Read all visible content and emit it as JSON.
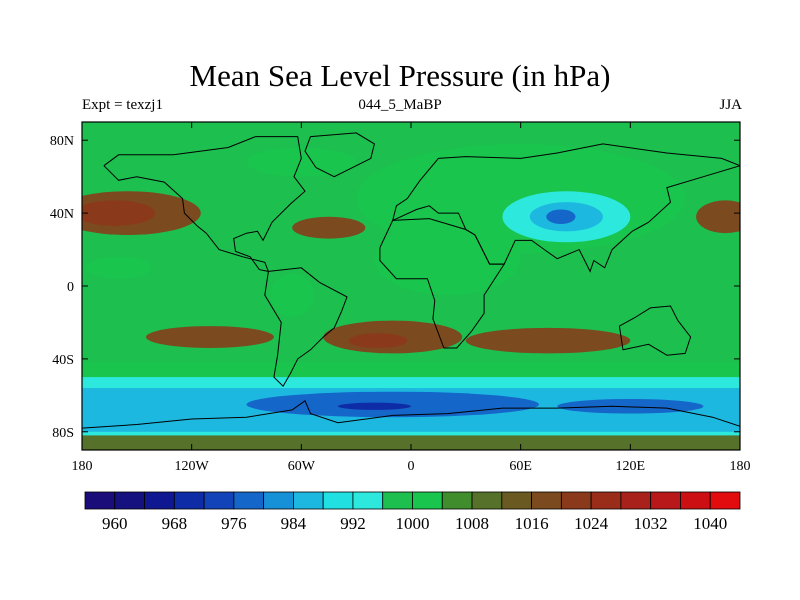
{
  "title": "Mean Sea Level Pressure (in hPa)",
  "subtitle_left": "Expt = texzj1",
  "subtitle_center": "044_5_MaBP",
  "subtitle_right": "JJA",
  "map": {
    "projection": "cylindrical equidistant",
    "lon_range": [
      -180,
      180
    ],
    "lat_range": [
      -90,
      90
    ],
    "x_ticks": [
      {
        "value": -180,
        "label": "180"
      },
      {
        "value": -120,
        "label": "120W"
      },
      {
        "value": -60,
        "label": "60W"
      },
      {
        "value": 0,
        "label": "0"
      },
      {
        "value": 60,
        "label": "60E"
      },
      {
        "value": 120,
        "label": "120E"
      },
      {
        "value": 180,
        "label": "180"
      }
    ],
    "y_ticks": [
      {
        "value": 80,
        "label": "80N"
      },
      {
        "value": 40,
        "label": "40N"
      },
      {
        "value": 0,
        "label": "0"
      },
      {
        "value": -40,
        "label": "40S"
      },
      {
        "value": -80,
        "label": "80S"
      }
    ],
    "background_color": "#1dbf4f",
    "pressure_regions": [
      {
        "name": "north-pacific-high",
        "hpa": 1016,
        "lon": -155,
        "lat": 40,
        "rlon": 40,
        "rlat": 12
      },
      {
        "name": "north-pacific-high-core",
        "hpa": 1020,
        "lon": -162,
        "lat": 40,
        "rlon": 22,
        "rlat": 7
      },
      {
        "name": "north-atlantic-high",
        "hpa": 1016,
        "lon": -45,
        "lat": 32,
        "rlon": 20,
        "rlat": 6
      },
      {
        "name": "east-pacific-high-edge",
        "hpa": 1016,
        "lon": 172,
        "lat": 38,
        "rlon": 16,
        "rlat": 9
      },
      {
        "name": "south-pacific-high",
        "hpa": 1016,
        "lon": -110,
        "lat": -28,
        "rlon": 35,
        "rlat": 6
      },
      {
        "name": "south-atlantic-high",
        "hpa": 1016,
        "lon": -10,
        "lat": -28,
        "rlon": 38,
        "rlat": 9
      },
      {
        "name": "south-atlantic-high-core",
        "hpa": 1020,
        "lon": -18,
        "lat": -30,
        "rlon": 16,
        "rlat": 4
      },
      {
        "name": "indian-ocean-high",
        "hpa": 1016,
        "lon": 75,
        "lat": -30,
        "rlon": 45,
        "rlat": 7
      },
      {
        "name": "arctic-low",
        "hpa": 1000,
        "lon": -60,
        "lat": 68,
        "rlon": 30,
        "rlat": 8
      },
      {
        "name": "pacific-subtropical-trough",
        "hpa": 1000,
        "lon": -160,
        "lat": 10,
        "rlon": 18,
        "rlat": 6
      },
      {
        "name": "eurasian-low",
        "hpa": 1000,
        "lon": 60,
        "lat": 48,
        "rlon": 90,
        "rlat": 30
      },
      {
        "name": "asian-monsoon-low",
        "hpa": 992,
        "lon": 85,
        "lat": 38,
        "rlon": 35,
        "rlat": 14
      },
      {
        "name": "asian-monsoon-low-core",
        "hpa": 984,
        "lon": 85,
        "lat": 38,
        "rlon": 20,
        "rlat": 8
      },
      {
        "name": "asian-monsoon-low-center",
        "hpa": 976,
        "lon": 82,
        "lat": 38,
        "rlon": 8,
        "rlat": 4
      },
      {
        "name": "african-low",
        "hpa": 1000,
        "lon": 20,
        "lat": 15,
        "rlon": 40,
        "rlat": 20
      },
      {
        "name": "south-american-low",
        "hpa": 1000,
        "lon": -65,
        "lat": -5,
        "rlon": 12,
        "rlat": 12
      }
    ],
    "southern_bands": [
      {
        "hpa": 1000,
        "lat_top": -42,
        "lat_bottom": -50
      },
      {
        "hpa": 992,
        "lat_top": -50,
        "lat_bottom": -85
      },
      {
        "hpa": 984,
        "lat_top": -56,
        "lat_bottom": -80
      },
      {
        "hpa": 1008,
        "lat_top": -82,
        "lat_bottom": -90
      }
    ],
    "southern_lows": [
      {
        "hpa": 976,
        "lon": -10,
        "lat": -65,
        "rlon": 80,
        "rlat": 7
      },
      {
        "hpa": 968,
        "lon": -20,
        "lat": -66,
        "rlon": 20,
        "rlat": 2
      },
      {
        "hpa": 976,
        "lon": 120,
        "lat": -66,
        "rlon": 40,
        "rlat": 4
      }
    ],
    "coastlines": [
      {
        "name": "north-america",
        "lonlat": [
          [
            -168,
            66
          ],
          [
            -160,
            72
          ],
          [
            -130,
            72
          ],
          [
            -100,
            76
          ],
          [
            -85,
            82
          ],
          [
            -62,
            82
          ],
          [
            -60,
            70
          ],
          [
            -64,
            60
          ],
          [
            -58,
            52
          ],
          [
            -66,
            45
          ],
          [
            -76,
            35
          ],
          [
            -81,
            25
          ],
          [
            -84,
            30
          ],
          [
            -90,
            29
          ],
          [
            -97,
            26
          ],
          [
            -96,
            19
          ],
          [
            -88,
            16
          ],
          [
            -83,
            9
          ],
          [
            -78,
            8
          ],
          [
            -80,
            13
          ],
          [
            -92,
            16
          ],
          [
            -105,
            20
          ],
          [
            -112,
            29
          ],
          [
            -117,
            33
          ],
          [
            -124,
            40
          ],
          [
            -125,
            48
          ],
          [
            -135,
            57
          ],
          [
            -150,
            60
          ],
          [
            -160,
            58
          ],
          [
            -168,
            66
          ]
        ]
      },
      {
        "name": "greenland",
        "lonlat": [
          [
            -55,
            82
          ],
          [
            -30,
            84
          ],
          [
            -20,
            78
          ],
          [
            -22,
            70
          ],
          [
            -42,
            60
          ],
          [
            -52,
            65
          ],
          [
            -58,
            74
          ],
          [
            -55,
            82
          ]
        ]
      },
      {
        "name": "south-america",
        "lonlat": [
          [
            -78,
            8
          ],
          [
            -60,
            10
          ],
          [
            -50,
            2
          ],
          [
            -35,
            -6
          ],
          [
            -38,
            -14
          ],
          [
            -42,
            -23
          ],
          [
            -48,
            -28
          ],
          [
            -55,
            -35
          ],
          [
            -62,
            -40
          ],
          [
            -66,
            -48
          ],
          [
            -70,
            -55
          ],
          [
            -75,
            -50
          ],
          [
            -73,
            -38
          ],
          [
            -71,
            -20
          ],
          [
            -80,
            -5
          ],
          [
            -78,
            8
          ]
        ]
      },
      {
        "name": "africa",
        "lonlat": [
          [
            -17,
            21
          ],
          [
            -10,
            36
          ],
          [
            10,
            37
          ],
          [
            30,
            31
          ],
          [
            35,
            28
          ],
          [
            43,
            12
          ],
          [
            51,
            12
          ],
          [
            40,
            -5
          ],
          [
            40,
            -15
          ],
          [
            33,
            -25
          ],
          [
            25,
            -34
          ],
          [
            18,
            -34
          ],
          [
            12,
            -18
          ],
          [
            13,
            -8
          ],
          [
            9,
            4
          ],
          [
            -8,
            4
          ],
          [
            -17,
            14
          ],
          [
            -17,
            21
          ]
        ]
      },
      {
        "name": "eurasia",
        "lonlat": [
          [
            -10,
            36
          ],
          [
            -8,
            44
          ],
          [
            -2,
            48
          ],
          [
            5,
            58
          ],
          [
            15,
            70
          ],
          [
            30,
            71
          ],
          [
            60,
            70
          ],
          [
            80,
            73
          ],
          [
            105,
            78
          ],
          [
            140,
            73
          ],
          [
            170,
            70
          ],
          [
            180,
            66
          ],
          [
            160,
            60
          ],
          [
            140,
            54
          ],
          [
            142,
            46
          ],
          [
            130,
            35
          ],
          [
            121,
            30
          ],
          [
            110,
            20
          ],
          [
            106,
            10
          ],
          [
            100,
            14
          ],
          [
            98,
            8
          ],
          [
            92,
            20
          ],
          [
            80,
            15
          ],
          [
            73,
            20
          ],
          [
            66,
            25
          ],
          [
            57,
            25
          ],
          [
            51,
            12
          ],
          [
            43,
            12
          ],
          [
            35,
            28
          ],
          [
            30,
            31
          ],
          [
            26,
            40
          ],
          [
            15,
            40
          ],
          [
            10,
            44
          ],
          [
            3,
            42
          ],
          [
            -10,
            36
          ]
        ]
      },
      {
        "name": "australia",
        "lonlat": [
          [
            114,
            -22
          ],
          [
            123,
            -17
          ],
          [
            131,
            -12
          ],
          [
            142,
            -11
          ],
          [
            146,
            -19
          ],
          [
            153,
            -28
          ],
          [
            150,
            -37
          ],
          [
            140,
            -38
          ],
          [
            130,
            -32
          ],
          [
            116,
            -35
          ],
          [
            114,
            -22
          ]
        ]
      },
      {
        "name": "antarctica",
        "lonlat": [
          [
            -180,
            -78
          ],
          [
            -150,
            -76
          ],
          [
            -120,
            -73
          ],
          [
            -90,
            -72
          ],
          [
            -65,
            -68
          ],
          [
            -58,
            -63
          ],
          [
            -55,
            -70
          ],
          [
            -40,
            -75
          ],
          [
            -10,
            -71
          ],
          [
            20,
            -70
          ],
          [
            50,
            -67
          ],
          [
            80,
            -67
          ],
          [
            110,
            -66
          ],
          [
            140,
            -67
          ],
          [
            165,
            -72
          ],
          [
            180,
            -77
          ]
        ]
      }
    ]
  },
  "colorbar": {
    "colors": [
      "#1a0d7a",
      "#15117f",
      "#101891",
      "#0e2ca6",
      "#1243b9",
      "#1566c9",
      "#1690d7",
      "#1db8e0",
      "#21e0e2",
      "#2de8dd",
      "#1dbf4f",
      "#19c54c",
      "#3f8d2c",
      "#56712a",
      "#6a5a22",
      "#7b4a1f",
      "#8a3a1b",
      "#9a2c1a",
      "#a8211b",
      "#b8181a",
      "#cc0f12",
      "#e20b0e"
    ],
    "labels": [
      "960",
      "968",
      "976",
      "984",
      "992",
      "1000",
      "1008",
      "1016",
      "1024",
      "1032",
      "1040"
    ]
  }
}
